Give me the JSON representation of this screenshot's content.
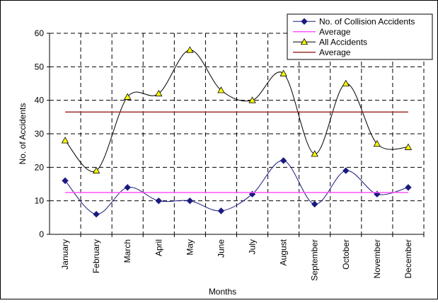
{
  "chart_data": {
    "type": "line",
    "title": "",
    "xlabel": "Months",
    "ylabel": "No. of Accidents",
    "categories": [
      "January",
      "February",
      "March",
      "April",
      "May",
      "June",
      "July",
      "August",
      "September",
      "October",
      "November",
      "December"
    ],
    "ylim": [
      0,
      60
    ],
    "yticks": [
      0,
      10,
      20,
      30,
      40,
      50,
      60
    ],
    "grid": true,
    "legend_position": "top-right",
    "series": [
      {
        "name": "No. of Collision Accidents",
        "values": [
          16,
          6,
          14,
          10,
          10,
          7,
          12,
          22,
          9,
          19,
          12,
          14
        ],
        "color": "#1a1a80",
        "marker": "diamond",
        "marker_color": "#1a1a80"
      },
      {
        "name": "Average",
        "values": [
          12.5,
          12.5,
          12.5,
          12.5,
          12.5,
          12.5,
          12.5,
          12.5,
          12.5,
          12.5,
          12.5,
          12.5
        ],
        "color": "#ff55ff",
        "marker": "none"
      },
      {
        "name": "All Accidents",
        "values": [
          28,
          19,
          41,
          42,
          55,
          43,
          40,
          48,
          24,
          45,
          27,
          26
        ],
        "color": "#000000",
        "marker": "triangle",
        "marker_color": "#ffff00"
      },
      {
        "name": "Average",
        "values": [
          36.5,
          36.5,
          36.5,
          36.5,
          36.5,
          36.5,
          36.5,
          36.5,
          36.5,
          36.5,
          36.5,
          36.5
        ],
        "color": "#a03030",
        "marker": "none"
      }
    ]
  }
}
